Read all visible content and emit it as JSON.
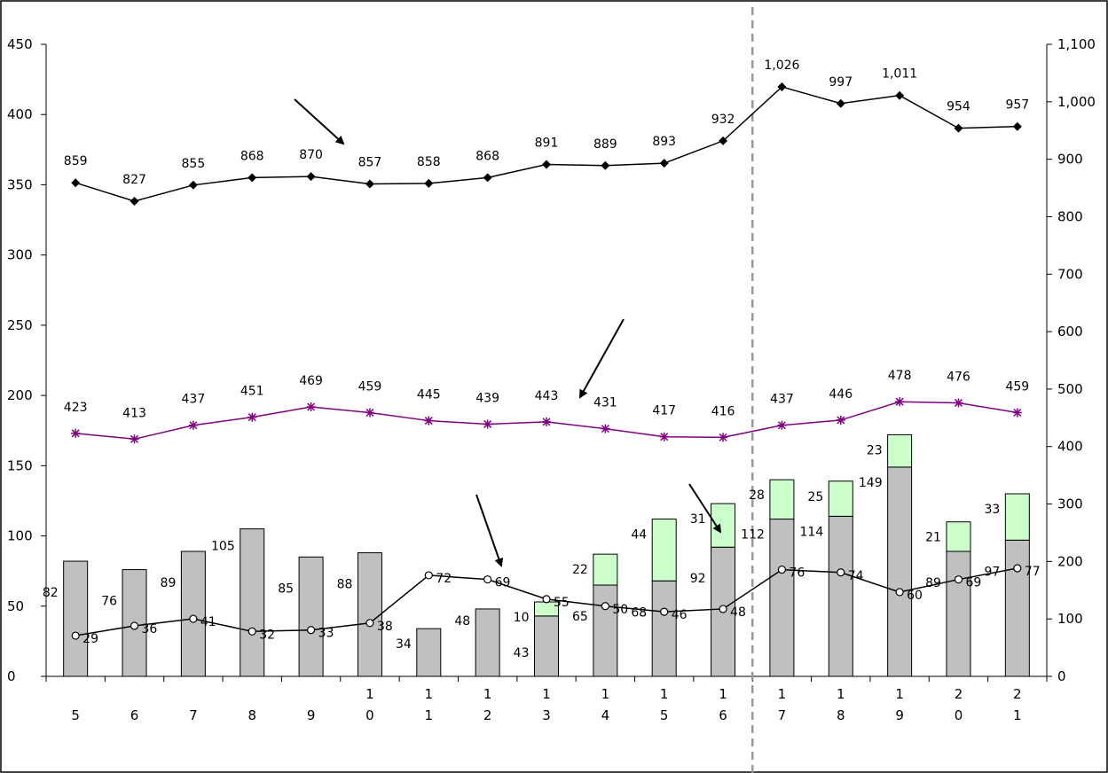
{
  "chart_data": {
    "type": "bar",
    "categories": [
      [
        "5"
      ],
      [
        "6"
      ],
      [
        "7"
      ],
      [
        "8"
      ],
      [
        "9"
      ],
      [
        "1",
        "0"
      ],
      [
        "1",
        "1"
      ],
      [
        "1",
        "2"
      ],
      [
        "1",
        "3"
      ],
      [
        "1",
        "4"
      ],
      [
        "1",
        "5"
      ],
      [
        "1",
        "6"
      ],
      [
        "1",
        "7"
      ],
      [
        "1",
        "8"
      ],
      [
        "1",
        "9"
      ],
      [
        "2",
        "0"
      ],
      [
        "2",
        "1"
      ]
    ],
    "left_axis": {
      "ylim": [
        0,
        450
      ],
      "ticks": [
        0,
        50,
        100,
        150,
        200,
        250,
        300,
        350,
        400,
        450
      ],
      "tick_labels": [
        "0",
        "50",
        "100",
        "150",
        "200",
        "250",
        "300",
        "350",
        "400",
        "450"
      ]
    },
    "right_axis": {
      "ylim": [
        0,
        1100
      ],
      "ticks": [
        0,
        100,
        200,
        300,
        400,
        500,
        600,
        700,
        800,
        900,
        1000,
        1100
      ],
      "tick_labels": [
        "0",
        "100",
        "200",
        "300",
        "400",
        "500",
        "600",
        "700",
        "800",
        "900",
        "1,000",
        "1,100"
      ]
    },
    "bars_base": {
      "color": "#c0c0c0",
      "values": [
        82,
        76,
        89,
        105,
        85,
        88,
        34,
        48,
        43,
        65,
        68,
        92,
        112,
        114,
        149,
        89,
        97
      ],
      "labels": [
        "82",
        "76",
        "89",
        "105",
        "85",
        "88",
        "34",
        "48",
        "43",
        "65",
        "68",
        "92",
        "112",
        "114",
        "149",
        "89",
        "97"
      ]
    },
    "bars_stack": {
      "color": "#ccffcc",
      "values": [
        null,
        null,
        null,
        null,
        null,
        null,
        null,
        null,
        10,
        22,
        44,
        31,
        28,
        25,
        23,
        21,
        33
      ],
      "labels": [
        "",
        "",
        "",
        "",
        "",
        "",
        "",
        "",
        "10",
        "22",
        "44",
        "31",
        "28",
        "25",
        "23",
        "21",
        "33"
      ]
    },
    "line_small": {
      "axis": "left",
      "color": "#000000",
      "marker": "open-circle",
      "values": [
        29,
        36,
        41,
        32,
        33,
        38,
        72,
        69,
        55,
        50,
        46,
        48,
        76,
        74,
        60,
        69,
        77
      ],
      "labels": [
        "29",
        "36",
        "41",
        "32",
        "33",
        "38",
        "72",
        "69",
        "55",
        "50",
        "46",
        "48",
        "76",
        "74",
        "60",
        "69",
        "77"
      ]
    },
    "line_mid": {
      "axis": "right",
      "color": "#800080",
      "marker": "asterisk",
      "values": [
        423,
        413,
        437,
        451,
        469,
        459,
        445,
        439,
        443,
        431,
        417,
        416,
        437,
        446,
        478,
        476,
        459
      ],
      "labels": [
        "423",
        "413",
        "437",
        "451",
        "469",
        "459",
        "445",
        "439",
        "443",
        "431",
        "417",
        "416",
        "437",
        "446",
        "478",
        "476",
        "459"
      ]
    },
    "line_top": {
      "axis": "right",
      "color": "#000000",
      "marker": "filled-diamond",
      "values": [
        859,
        827,
        855,
        868,
        870,
        857,
        858,
        868,
        891,
        889,
        893,
        932,
        1026,
        997,
        1011,
        954,
        957
      ],
      "labels": [
        "859",
        "827",
        "855",
        "868",
        "870",
        "857",
        "858",
        "868",
        "891",
        "889",
        "893",
        "932",
        "1,026",
        "997",
        "1,011",
        "954",
        "957"
      ]
    },
    "divider_after_category_index": 11,
    "grid": false,
    "legend": "none"
  }
}
